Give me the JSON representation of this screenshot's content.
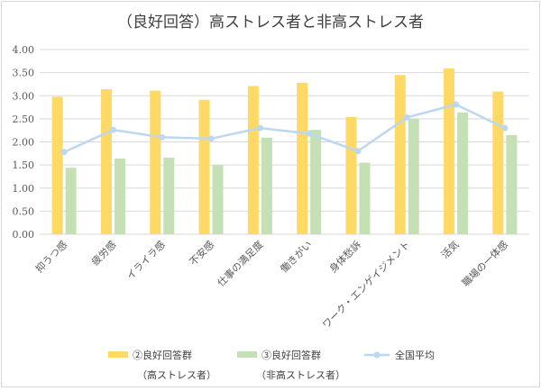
{
  "chart_data": {
    "type": "bar",
    "title": "（良好回答）高ストレス者と非高ストレス者",
    "xlabel": "",
    "ylabel": "",
    "ylim": [
      0,
      4
    ],
    "yticks": [
      "0.00",
      "0.50",
      "1.00",
      "1.50",
      "2.00",
      "2.50",
      "3.00",
      "3.50",
      "4.00"
    ],
    "categories": [
      "抑うつ感",
      "疲労感",
      "イライラ感",
      "不安感",
      "仕事の満足度",
      "働きがい",
      "身体愁訴",
      "ワーク・エンゲイジメント",
      "活気",
      "職場の一体感"
    ],
    "series": [
      {
        "name": "②良好回答群",
        "name_line2": "（高ストレス者）",
        "kind": "bar",
        "color": "#ffd966",
        "values": [
          2.98,
          3.14,
          3.11,
          2.91,
          3.21,
          3.28,
          2.54,
          3.45,
          3.59,
          3.09
        ]
      },
      {
        "name": "③良好回答群",
        "name_line2": "（非高ストレス者）",
        "kind": "bar",
        "color": "#c5e0b4",
        "values": [
          1.44,
          1.64,
          1.66,
          1.5,
          2.09,
          2.26,
          1.55,
          2.5,
          2.64,
          2.15
        ]
      },
      {
        "name": "全国平均",
        "kind": "line",
        "color": "#bdd7ee",
        "values": [
          1.78,
          2.26,
          2.1,
          2.07,
          2.3,
          2.18,
          1.8,
          2.53,
          2.81,
          2.3
        ]
      }
    ],
    "grid": true,
    "legend": "bottom"
  }
}
